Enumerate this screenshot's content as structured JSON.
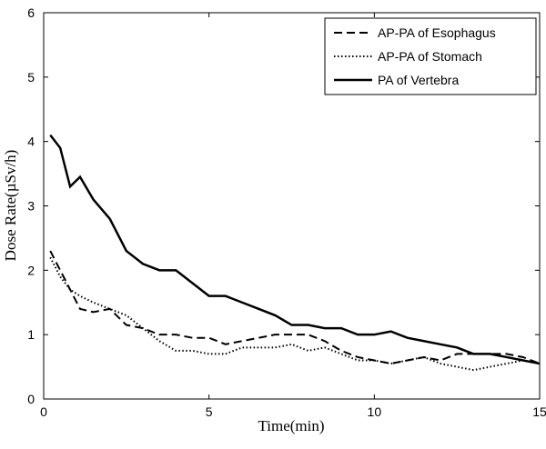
{
  "chart_data": {
    "type": "line",
    "x_label": "Time(min)",
    "y_label": "Dose Rate(µSv/h)",
    "x": [
      0.2,
      0.5,
      0.8,
      1.1,
      1.5,
      2,
      2.5,
      3,
      3.5,
      4,
      4.5,
      5,
      5.5,
      6,
      6.5,
      7,
      7.5,
      8,
      8.5,
      9,
      9.5,
      10,
      10.5,
      11,
      11.5,
      12,
      12.5,
      13,
      13.5,
      14,
      14.5,
      15
    ],
    "series": [
      {
        "name": "AP-PA of Esophagus",
        "color": "#000000",
        "style": "dashed",
        "values": [
          2.3,
          2.0,
          1.7,
          1.4,
          1.35,
          1.4,
          1.15,
          1.1,
          1.0,
          1.0,
          0.95,
          0.95,
          0.85,
          0.9,
          0.95,
          1.0,
          1.0,
          1.0,
          0.9,
          0.75,
          0.65,
          0.6,
          0.55,
          0.6,
          0.65,
          0.6,
          0.7,
          0.7,
          0.7,
          0.7,
          0.65,
          0.55
        ]
      },
      {
        "name": "AP-PA of Stomach",
        "color": "#000000",
        "style": "dotted",
        "values": [
          2.2,
          1.9,
          1.7,
          1.6,
          1.5,
          1.4,
          1.3,
          1.1,
          0.9,
          0.75,
          0.75,
          0.7,
          0.7,
          0.8,
          0.8,
          0.8,
          0.85,
          0.75,
          0.8,
          0.7,
          0.6,
          0.6,
          0.55,
          0.6,
          0.65,
          0.55,
          0.5,
          0.45,
          0.5,
          0.55,
          0.6,
          0.55
        ]
      },
      {
        "name": "PA of Vertebra",
        "color": "#000000",
        "style": "solid",
        "values": [
          4.1,
          3.9,
          3.3,
          3.45,
          3.1,
          2.8,
          2.3,
          2.1,
          2.0,
          2.0,
          1.8,
          1.6,
          1.6,
          1.5,
          1.4,
          1.3,
          1.15,
          1.15,
          1.1,
          1.1,
          1.0,
          1.0,
          1.05,
          0.95,
          0.9,
          0.85,
          0.8,
          0.7,
          0.7,
          0.65,
          0.6,
          0.55
        ]
      }
    ],
    "xlim": [
      0,
      15
    ],
    "xticks": [
      0,
      5,
      10,
      15
    ],
    "ylim": [
      0,
      6
    ],
    "yticks": [
      0,
      1,
      2,
      3,
      4,
      5,
      6
    ],
    "legend": "top-right",
    "grid": false
  }
}
